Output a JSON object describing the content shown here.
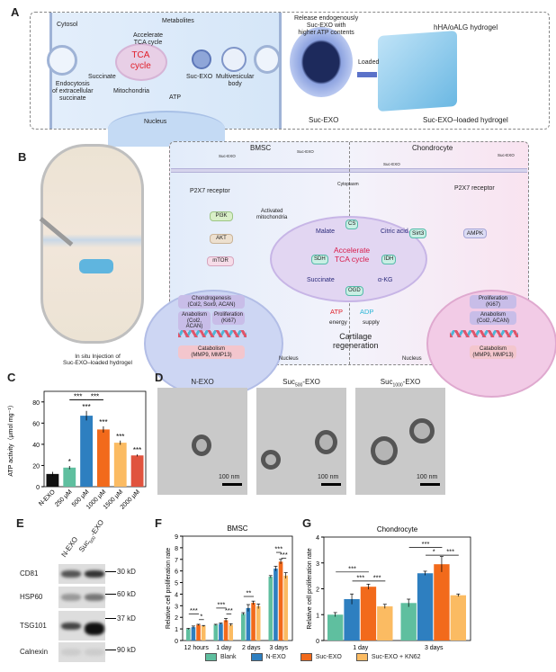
{
  "panels": {
    "a": "A",
    "b": "B",
    "c": "C",
    "d": "D",
    "e": "E",
    "f": "F",
    "g": "G"
  },
  "panel_a": {
    "cytosol": "Cytosol",
    "accelerate": "Accelerate",
    "tca_cycle_text": "TCA cycle",
    "metabolites": "Metabolites",
    "release": "Release endogenously",
    "release2": "Suc-EXO with",
    "release3": "higher ATP contents",
    "hydrogel": "hHA/oALG hydrogel",
    "tca": "TCA",
    "cycle": "cycle",
    "succinate": "Succinate",
    "suc_exo": "Suc-EXO",
    "mvb": "Multivesicular",
    "mvb2": "body",
    "endo1": "Endocytosis",
    "endo2": "of extracellular",
    "endo3": "succinate",
    "mitochondria": "Mitochondria",
    "atp": "ATP",
    "nucleus": "Nucleus",
    "suc_exo_big": "Suc-EXO",
    "loaded": "Loaded",
    "loaded_hydrogel": "Suc-EXO–loaded hydrogel"
  },
  "panel_b": {
    "injection1": "In situ Injection of",
    "injection2": "Suc-EXO–loaded hydrogel",
    "bmsc": "BMSC",
    "chondrocyte": "Chondrocyte",
    "suc_exo": "Suc-EXO",
    "cytoplasm": "Cytoplasm",
    "p2x7": "P2X7 receptor",
    "pi3k": "PI3K",
    "akt": "AKT",
    "mtor": "mTOR",
    "p": "P",
    "activated1": "Activated",
    "activated2": "mitochondria",
    "malate": "Malate",
    "citric": "Citric acid",
    "succinate": "Succinate",
    "akg": "α-KG",
    "accel1": "Accelerate",
    "accel2": "TCA cycle",
    "cs": "CS",
    "sdh": "SDH",
    "idh": "IDH",
    "ogd": "OGD",
    "sirt3": "Sirt3",
    "ampk": "AMPK",
    "chondro1": "Chondrogenesis",
    "chondro2": "(Col2, Sox9, ACAN)",
    "anab1": "Anabolism",
    "anab2": "(Col2, ACAN)",
    "prolif1": "Proliferation",
    "prolif2": "(Ki67)",
    "catab1": "Catabolism",
    "catab2": "(MMP9, MMP13)",
    "atp": "ATP",
    "adp": "ADP",
    "energy": "energy",
    "supply": "supply",
    "cart1": "Cartilage",
    "cart2": "regeneration",
    "nucleus": "Nucleus"
  },
  "panel_d": {
    "titles": [
      {
        "main": "N-EXO",
        "sub": ""
      },
      {
        "main": "Suc",
        "sub": "500",
        "suffix": "-EXO"
      },
      {
        "main": "Suc",
        "sub": "1000",
        "suffix": "-EXO"
      }
    ],
    "scale": "100 nm"
  },
  "panel_e": {
    "cols": [
      {
        "main": "N-EXO"
      },
      {
        "main": "Suc",
        "sub": "500",
        "suffix": "-EXO"
      }
    ],
    "rows": [
      {
        "name": "CD81",
        "marker": "30 kD"
      },
      {
        "name": "HSP60",
        "marker": "60 kD"
      },
      {
        "name": "TSG101",
        "marker": "37 kD"
      },
      {
        "name": "Calnexin",
        "marker": "90 kD"
      }
    ]
  },
  "legend": [
    {
      "label": "Blank",
      "color": "#5fbf9f"
    },
    {
      "label": "N-EXO",
      "color": "#2e7fc0"
    },
    {
      "label": "Suc-EXO",
      "color": "#f26a1b"
    },
    {
      "label": "Suc-EXO + KN62",
      "color": "#fbbb62"
    }
  ],
  "chart_data": [
    {
      "id": "C",
      "type": "bar",
      "title": "",
      "xlabel": "",
      "ylabel": "ATP activity（μmol mg⁻¹）",
      "categories": [
        "N-EXO",
        "250 μM",
        "500 μM",
        "1000 μM",
        "1500 μM",
        "2000 μM"
      ],
      "values": [
        12,
        18,
        67,
        54,
        41.5,
        29.5
      ],
      "errors": [
        2,
        1.5,
        4.5,
        3,
        2,
        1
      ],
      "colors": [
        "#111111",
        "#5fbf9f",
        "#2e7fc0",
        "#f26a1b",
        "#fbbb62",
        "#e0533e"
      ],
      "ylim": [
        0,
        90
      ],
      "yticks": [
        0,
        20,
        40,
        60,
        80
      ],
      "stars": [
        "",
        "*",
        "***",
        "***",
        "***",
        "***"
      ],
      "brackets": [
        {
          "from": 1,
          "to": 2,
          "y": 82,
          "text": "***"
        },
        {
          "from": 2,
          "to": 3,
          "y": 82,
          "text": "***"
        }
      ]
    },
    {
      "id": "F",
      "type": "bar",
      "title": "BMSC",
      "xlabel": "",
      "ylabel": "Relative cell proliferation rate",
      "categories": [
        "12 hours",
        "1 day",
        "2 days",
        "3 days"
      ],
      "series": [
        {
          "name": "Blank",
          "values": [
            1.0,
            1.35,
            2.3,
            5.5
          ]
        },
        {
          "name": "N-EXO",
          "values": [
            1.15,
            1.45,
            2.8,
            6.2
          ]
        },
        {
          "name": "Suc-EXO",
          "values": [
            1.35,
            1.75,
            3.25,
            6.8
          ]
        },
        {
          "name": "Suc-EXO + KN62",
          "values": [
            1.25,
            1.35,
            2.95,
            5.6
          ]
        }
      ],
      "errors": [
        [
          0.05,
          0.05,
          0.1,
          0.1
        ],
        [
          0.1,
          0.05,
          0.3,
          0.2
        ],
        [
          0.05,
          0.15,
          0.15,
          0.2
        ],
        [
          0.05,
          0.1,
          0.2,
          0.25
        ]
      ],
      "ylim": [
        0,
        9
      ],
      "yticks": [
        0,
        1,
        2,
        3,
        4,
        5,
        6,
        7,
        8,
        9
      ],
      "annotations": [
        {
          "group": 0,
          "from": 0,
          "to": 2,
          "y": 2.3,
          "text": "***"
        },
        {
          "group": 0,
          "from": 2,
          "to": 3,
          "y": 1.8,
          "text": "*"
        },
        {
          "group": 1,
          "from": 0,
          "to": 2,
          "y": 2.8,
          "text": "***"
        },
        {
          "group": 1,
          "from": 2,
          "to": 3,
          "y": 2.3,
          "text": "***"
        },
        {
          "group": 2,
          "from": 0,
          "to": 2,
          "y": 3.8,
          "text": "**"
        },
        {
          "group": 3,
          "from": 1,
          "to": 2,
          "y": 7.6,
          "text": "***"
        },
        {
          "group": 3,
          "from": 2,
          "to": 3,
          "y": 7.1,
          "text": "***"
        }
      ]
    },
    {
      "id": "G",
      "type": "bar",
      "title": "Chondrocyte",
      "xlabel": "",
      "ylabel": "Relative cell proliferation rate",
      "categories": [
        "1 day",
        "3 days"
      ],
      "series": [
        {
          "name": "Blank",
          "values": [
            1.0,
            1.45
          ]
        },
        {
          "name": "N-EXO",
          "values": [
            1.6,
            2.6
          ]
        },
        {
          "name": "Suc-EXO",
          "values": [
            2.08,
            2.95
          ]
        },
        {
          "name": "Suc-EXO + KN62",
          "values": [
            1.32,
            1.75
          ]
        }
      ],
      "errors": [
        [
          0.08,
          0.15
        ],
        [
          0.2,
          0.08
        ],
        [
          0.1,
          0.3
        ],
        [
          0.08,
          0.05
        ]
      ],
      "ylim": [
        0,
        4
      ],
      "yticks": [
        0,
        1,
        2,
        3,
        4
      ],
      "annotations": [
        {
          "group": 0,
          "from": 0,
          "to": 2,
          "y": 2.65,
          "text": "***"
        },
        {
          "group": 0,
          "from": 1,
          "to": 2,
          "y": 2.3,
          "text": "***"
        },
        {
          "group": 0,
          "from": 2,
          "to": 3,
          "y": 2.3,
          "text": "***"
        },
        {
          "group": 1,
          "from": 0,
          "to": 2,
          "y": 3.6,
          "text": "***"
        },
        {
          "group": 1,
          "from": 1,
          "to": 2,
          "y": 3.3,
          "text": "*"
        },
        {
          "group": 1,
          "from": 2,
          "to": 3,
          "y": 3.3,
          "text": "***"
        }
      ]
    }
  ]
}
